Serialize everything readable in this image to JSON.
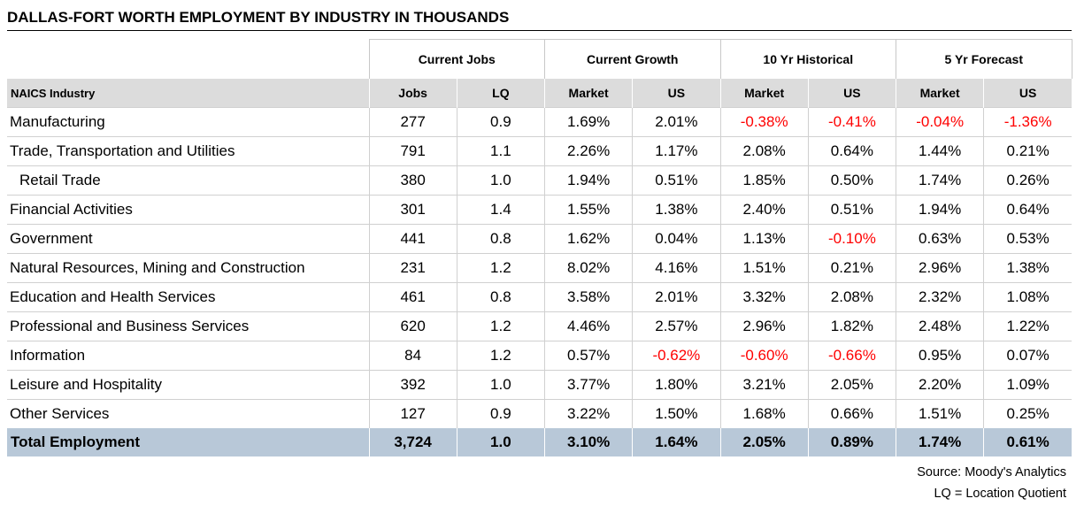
{
  "title": "DALLAS-FORT WORTH EMPLOYMENT BY INDUSTRY IN THOUSANDS",
  "groups": [
    "Current Jobs",
    "Current Growth",
    "10 Yr Historical",
    "5 Yr Forecast"
  ],
  "subheaders": [
    "NAICS Industry",
    "Jobs",
    "LQ",
    "Market",
    "US",
    "Market",
    "US",
    "Market",
    "US"
  ],
  "negative_color": "#ff0000",
  "total_row_color": "#b8c8d8",
  "header_row_color": "#dcdcdc",
  "rows": [
    {
      "industry": "Manufacturing",
      "indent": false,
      "cells": [
        "277",
        "0.9",
        "1.69%",
        "2.01%",
        "-0.38%",
        "-0.41%",
        "-0.04%",
        "-1.36%"
      ]
    },
    {
      "industry": "Trade, Transportation and Utilities",
      "indent": false,
      "cells": [
        "791",
        "1.1",
        "2.26%",
        "1.17%",
        "2.08%",
        "0.64%",
        "1.44%",
        "0.21%"
      ]
    },
    {
      "industry": "Retail Trade",
      "indent": true,
      "cells": [
        "380",
        "1.0",
        "1.94%",
        "0.51%",
        "1.85%",
        "0.50%",
        "1.74%",
        "0.26%"
      ]
    },
    {
      "industry": "Financial Activities",
      "indent": false,
      "cells": [
        "301",
        "1.4",
        "1.55%",
        "1.38%",
        "2.40%",
        "0.51%",
        "1.94%",
        "0.64%"
      ]
    },
    {
      "industry": "Government",
      "indent": false,
      "cells": [
        "441",
        "0.8",
        "1.62%",
        "0.04%",
        "1.13%",
        "-0.10%",
        "0.63%",
        "0.53%"
      ]
    },
    {
      "industry": "Natural Resources, Mining and Construction",
      "indent": false,
      "cells": [
        "231",
        "1.2",
        "8.02%",
        "4.16%",
        "1.51%",
        "0.21%",
        "2.96%",
        "1.38%"
      ]
    },
    {
      "industry": "Education and Health Services",
      "indent": false,
      "cells": [
        "461",
        "0.8",
        "3.58%",
        "2.01%",
        "3.32%",
        "2.08%",
        "2.32%",
        "1.08%"
      ]
    },
    {
      "industry": "Professional and Business Services",
      "indent": false,
      "cells": [
        "620",
        "1.2",
        "4.46%",
        "2.57%",
        "2.96%",
        "1.82%",
        "2.48%",
        "1.22%"
      ]
    },
    {
      "industry": "Information",
      "indent": false,
      "cells": [
        "84",
        "1.2",
        "0.57%",
        "-0.62%",
        "-0.60%",
        "-0.66%",
        "0.95%",
        "0.07%"
      ]
    },
    {
      "industry": "Leisure and Hospitality",
      "indent": false,
      "cells": [
        "392",
        "1.0",
        "3.77%",
        "1.80%",
        "3.21%",
        "2.05%",
        "2.20%",
        "1.09%"
      ]
    },
    {
      "industry": "Other Services",
      "indent": false,
      "cells": [
        "127",
        "0.9",
        "3.22%",
        "1.50%",
        "1.68%",
        "0.66%",
        "1.51%",
        "0.25%"
      ]
    }
  ],
  "total": {
    "industry": "Total Employment",
    "cells": [
      "3,724",
      "1.0",
      "3.10%",
      "1.64%",
      "2.05%",
      "0.89%",
      "1.74%",
      "0.61%"
    ]
  },
  "notes": [
    "Source: Moody's Analytics",
    "LQ = Location Quotient"
  ]
}
